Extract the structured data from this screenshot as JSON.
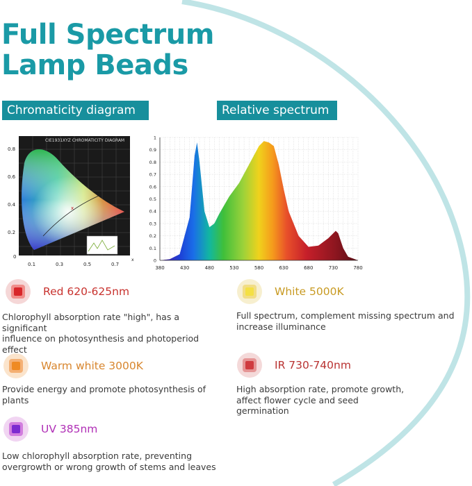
{
  "page": {
    "title_line1": "Full Spectrum",
    "title_line2": "Lamp Beads"
  },
  "sections": {
    "chromaticity_label": "Chromaticity diagram",
    "spectrum_label": "Relative spectrum"
  },
  "chromaticity_diagram": {
    "header": "CIE1931XYZ CHROMATICITY DIAGRAM",
    "y_ticks": [
      "0.8",
      "0.6",
      "0.4",
      "0.2",
      "0"
    ],
    "x_ticks": [
      "0.1",
      "0.3",
      "0.5",
      "0.7"
    ],
    "x_axis_letter": "x"
  },
  "chart_data": {
    "type": "area",
    "x": [
      380,
      400,
      420,
      440,
      450,
      455,
      460,
      470,
      480,
      490,
      500,
      520,
      540,
      560,
      580,
      590,
      600,
      610,
      620,
      630,
      640,
      660,
      680,
      700,
      720,
      735,
      740,
      750,
      760,
      780
    ],
    "values": [
      0,
      0.01,
      0.05,
      0.35,
      0.85,
      0.96,
      0.8,
      0.4,
      0.27,
      0.3,
      0.38,
      0.52,
      0.63,
      0.78,
      0.93,
      0.97,
      0.96,
      0.93,
      0.78,
      0.58,
      0.4,
      0.2,
      0.11,
      0.12,
      0.18,
      0.24,
      0.22,
      0.1,
      0.03,
      0
    ],
    "x_ticks": [
      "380",
      "430",
      "480",
      "530",
      "580",
      "630",
      "680",
      "730",
      "780"
    ],
    "y_ticks": [
      "0",
      "0.1",
      "0.2",
      "0.3",
      "0.4",
      "0.5",
      "0.6",
      "0.7",
      "0.8",
      "0.9",
      "1"
    ],
    "xlim": [
      380,
      780
    ],
    "ylim": [
      0,
      1
    ],
    "grid": true
  },
  "items": [
    {
      "title": "Red 620-625nm",
      "desc": [
        "Chlorophyll absorption rate \"high\", has a significant",
        "influence on photosynthesis and photoperiod",
        "effect"
      ],
      "title_color": "#c8322e",
      "ring": "#f5d7d7",
      "chip": "#f08e8b",
      "core": "#d8262a"
    },
    {
      "title": "White 5000K",
      "desc": [
        "Full spectrum, complement missing spectrum and",
        "increase illuminance"
      ],
      "title_color": "#c89a22",
      "ring": "#f7efcf",
      "chip": "#f1dd86",
      "core": "#f4e044"
    },
    {
      "title": "Warm white 3000K",
      "desc": [
        "Provide energy and promote photosynthesis of",
        "plants"
      ],
      "title_color": "#d8862e",
      "ring": "#fbe4cc",
      "chip": "#f4b074",
      "core": "#ef8a22"
    },
    {
      "title": "IR 730-740nm",
      "desc": [
        "High absorption rate, promote growth,",
        "affect flower cycle and seed",
        "germination"
      ],
      "title_color": "#b93332",
      "ring": "#f4d9d9",
      "chip": "#e59595",
      "core": "#cf3b3f"
    },
    {
      "title": "UV 385nm",
      "desc": [
        "Low chlorophyll absorption rate, preventing",
        "overgrowth or wrong growth of stems and leaves"
      ],
      "title_color": "#b02fb6",
      "ring": "#f1d5f2",
      "chip": "#d27ede",
      "core": "#7c2bd0"
    }
  ]
}
